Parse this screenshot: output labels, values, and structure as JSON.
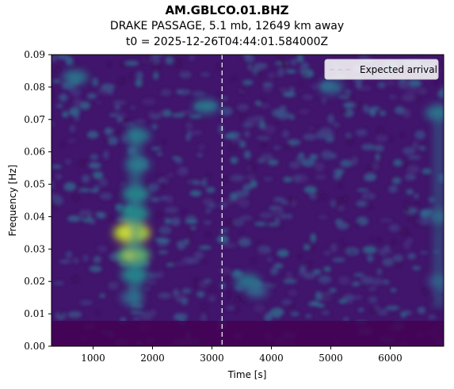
{
  "header": {
    "title": "AM.GBLCO.01.BHZ",
    "subtitle": "DRAKE PASSAGE, 5.1 mb, 12649 km away",
    "t0": "t0 = 2025-12-26T04:44:01.584000Z"
  },
  "chart_data": {
    "type": "heatmap",
    "xlabel": "Time [s]",
    "ylabel": "Frequency [Hz]",
    "xlim": [
      300,
      6900
    ],
    "ylim": [
      0,
      0.09
    ],
    "x_ticks": [
      1000,
      2000,
      3000,
      4000,
      5000,
      6000
    ],
    "y_ticks": [
      0.0,
      0.01,
      0.02,
      0.03,
      0.04,
      0.05,
      0.06,
      0.07,
      0.08,
      0.09
    ],
    "x_tick_labels": [
      "1000",
      "2000",
      "3000",
      "4000",
      "5000",
      "6000"
    ],
    "y_tick_labels": [
      "0.00",
      "0.01",
      "0.02",
      "0.03",
      "0.04",
      "0.05",
      "0.06",
      "0.07",
      "0.08",
      "0.09"
    ],
    "colormap": "viridis",
    "grid": false,
    "expected_arrival": {
      "time": 3170,
      "label": "Expected arrival",
      "color": "#ffffff",
      "style": "dashed"
    },
    "legend": {
      "position": "top-right",
      "entries": [
        "Expected arrival"
      ]
    },
    "energy_features": [
      {
        "time": 1650,
        "freq": 0.035,
        "intensity": 1.0
      },
      {
        "time": 1680,
        "freq": 0.028,
        "intensity": 0.8
      },
      {
        "time": 1700,
        "freq": 0.041,
        "intensity": 0.6
      },
      {
        "time": 1700,
        "freq": 0.022,
        "intensity": 0.55
      },
      {
        "time": 1720,
        "freq": 0.047,
        "intensity": 0.55
      },
      {
        "time": 1750,
        "freq": 0.056,
        "intensity": 0.45
      },
      {
        "time": 1750,
        "freq": 0.065,
        "intensity": 0.45
      },
      {
        "time": 1650,
        "freq": 0.015,
        "intensity": 0.35
      },
      {
        "time": 3600,
        "freq": 0.02,
        "intensity": 0.45
      },
      {
        "time": 3750,
        "freq": 0.017,
        "intensity": 0.35
      },
      {
        "time": 700,
        "freq": 0.083,
        "intensity": 0.45
      },
      {
        "time": 2900,
        "freq": 0.074,
        "intensity": 0.45
      },
      {
        "time": 5000,
        "freq": 0.08,
        "intensity": 0.4
      },
      {
        "time": 6800,
        "freq": 0.072,
        "intensity": 0.45
      },
      {
        "time": 6820,
        "freq": 0.04,
        "intensity": 0.35
      },
      {
        "time": 6820,
        "freq": 0.02,
        "intensity": 0.3
      }
    ],
    "colors": {
      "arrival_line": "#ffffff",
      "legend_bg": "#ffffff"
    }
  }
}
